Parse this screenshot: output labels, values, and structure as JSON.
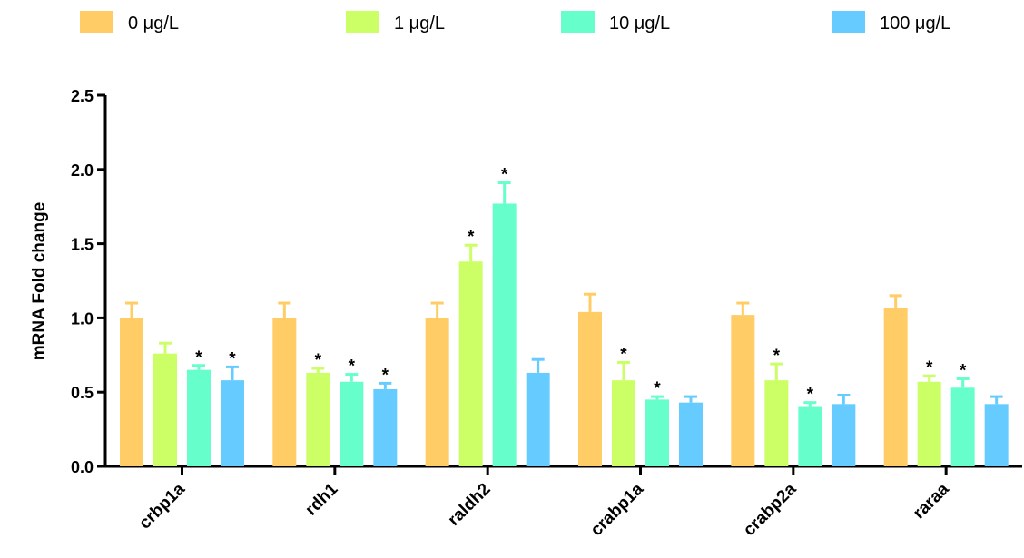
{
  "chart_data": {
    "type": "bar",
    "ylabel": "mRNA Fold change",
    "xlabel": "",
    "ylim": [
      0,
      2.5
    ],
    "yticks": [
      "0.0",
      "0.5",
      "1.0",
      "1.5",
      "2.0",
      "2.5"
    ],
    "categories": [
      "crbp1a",
      "rdh1",
      "raldh2",
      "crabp1a",
      "crabp2a",
      "raraa"
    ],
    "legend_position": "top",
    "series": [
      {
        "name": "0 μg/L",
        "color": "#FFCC66",
        "values": [
          1.0,
          1.0,
          1.0,
          1.04,
          1.02,
          1.07
        ],
        "errors": [
          0.1,
          0.1,
          0.1,
          0.12,
          0.08,
          0.08
        ],
        "significant": [
          false,
          false,
          false,
          false,
          false,
          false
        ]
      },
      {
        "name": "1 μg/L",
        "color": "#CCFF66",
        "values": [
          0.76,
          0.63,
          1.38,
          0.58,
          0.58,
          0.57
        ],
        "errors": [
          0.07,
          0.03,
          0.11,
          0.12,
          0.11,
          0.04
        ],
        "significant": [
          false,
          true,
          true,
          true,
          true,
          true
        ]
      },
      {
        "name": "10 μg/L",
        "color": "#66FFCC",
        "values": [
          0.65,
          0.57,
          1.77,
          0.45,
          0.4,
          0.53
        ],
        "errors": [
          0.03,
          0.05,
          0.14,
          0.02,
          0.03,
          0.06
        ],
        "significant": [
          true,
          true,
          true,
          true,
          true,
          true
        ]
      },
      {
        "name": "100 μg/L",
        "color": "#66CCFF",
        "values": [
          0.58,
          0.52,
          0.63,
          0.43,
          0.42,
          0.42
        ],
        "errors": [
          0.09,
          0.04,
          0.09,
          0.04,
          0.06,
          0.05
        ],
        "significant": [
          true,
          true,
          false,
          false,
          false,
          false
        ]
      }
    ],
    "significance_marker": "*"
  }
}
